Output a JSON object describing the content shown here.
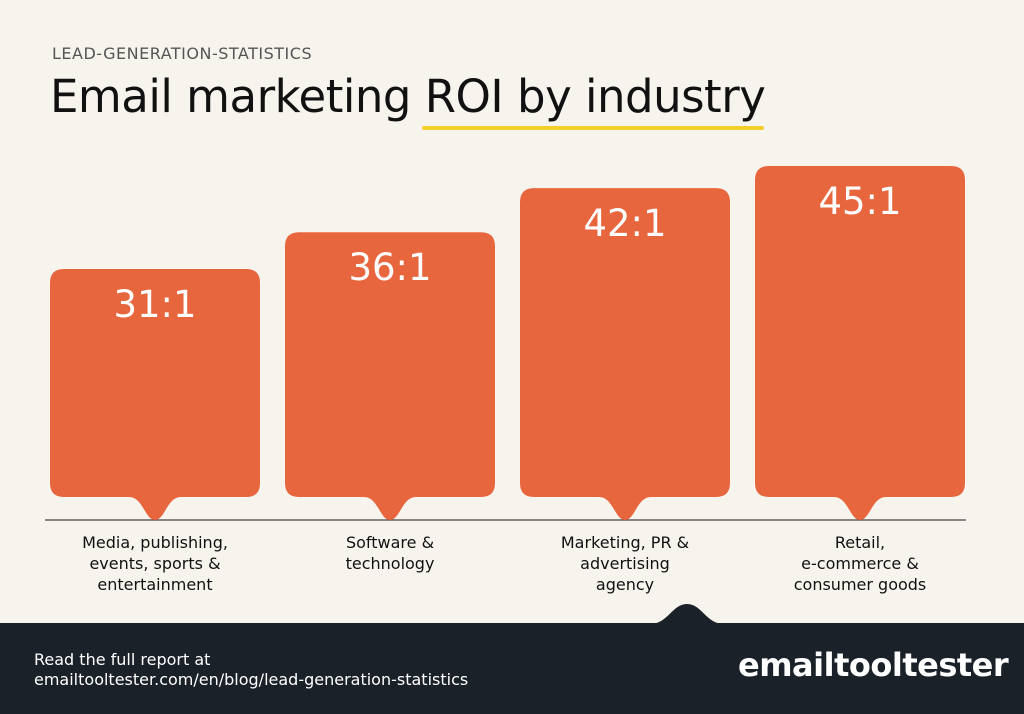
{
  "header": {
    "subtitle": "LEAD-GENERATION-STATISTICS",
    "title": "Email marketing ROI by industry"
  },
  "chart_data": {
    "type": "bar",
    "title": "Email marketing ROI by industry",
    "categories": [
      "Media, publishing, events, sports & entertainment",
      "Software & technology",
      "Marketing, PR & advertising agency",
      "Retail, e-commerce & consumer goods"
    ],
    "category_lines": [
      [
        "Media, publishing,",
        "events, sports &",
        "entertainment"
      ],
      [
        "Software &",
        "technology"
      ],
      [
        "Marketing, PR &",
        "advertising",
        "agency"
      ],
      [
        "Retail,",
        "e-commerce &",
        "consumer goods"
      ]
    ],
    "values": [
      31,
      36,
      42,
      45
    ],
    "value_labels": [
      "31:1",
      "36:1",
      "42:1",
      "45:1"
    ],
    "xlabel": "",
    "ylabel": "",
    "grid": false,
    "bar_color": "#e8663d"
  },
  "footer": {
    "line1": "Read the full report at",
    "line2": "emailtooltester.com/en/blog/lead-generation-statistics",
    "brand": "emailtooltester"
  },
  "colors": {
    "background": "#f7f4ee",
    "bar": "#e8663d",
    "accent_underline": "#f2cf2a",
    "footer_bg": "#1b2128"
  }
}
